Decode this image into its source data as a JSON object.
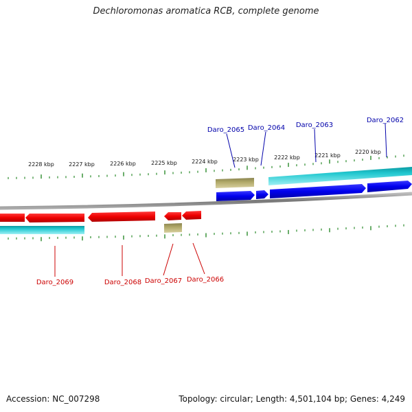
{
  "title": "Dechloromonas aromatica RCB, complete genome",
  "footer": {
    "accession": "Accession: NC_007298",
    "topology": "Topology: circular; Length: 4,501,104 bp; Genes: 4,249"
  },
  "scale": {
    "labels": [
      "2228 kbp",
      "2227 kbp",
      "2226 kbp",
      "2225 kbp",
      "2224 kbp",
      "2223 kbp",
      "2222 kbp",
      "2221 kbp",
      "2220 kbp"
    ]
  },
  "genes_top": [
    {
      "label": "Daro_2065",
      "color": "#0000aa"
    },
    {
      "label": "Daro_2064",
      "color": "#0000aa"
    },
    {
      "label": "Daro_2063",
      "color": "#0000aa"
    },
    {
      "label": "Daro_2062",
      "color": "#0000aa"
    }
  ],
  "genes_bottom": [
    {
      "label": "Daro_2069",
      "color": "#cc0000"
    },
    {
      "label": "Daro_2068",
      "color": "#cc0000"
    },
    {
      "label": "Daro_2067",
      "color": "#cc0000"
    },
    {
      "label": "Daro_2066",
      "color": "#cc0000"
    }
  ],
  "colors": {
    "cds_forward": "#0000ee",
    "cds_reverse": "#ee0000",
    "rna": "#22c8d0",
    "misc_feature": "#b0a868",
    "backbone": "#888888",
    "tick": "#2a8a2a"
  }
}
